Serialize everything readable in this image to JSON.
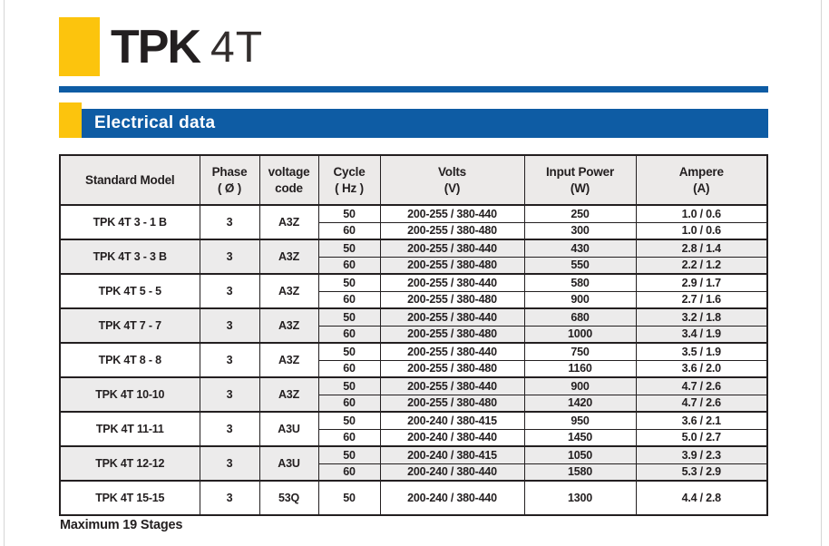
{
  "header": {
    "brand": "TPK",
    "series": "4T"
  },
  "section": {
    "title": "Electrical data"
  },
  "footnote": "Maximum 19 Stages",
  "colors": {
    "accent_blue": "#0e5ca4",
    "accent_yellow": "#fcc40d",
    "text_black": "#231f20",
    "row_alt_gray": "#ecebeb",
    "header_gray": "#eceae9",
    "page_edge_gray": "#d6d6d6"
  },
  "table": {
    "headers": [
      {
        "line1": "Standard Model"
      },
      {
        "line1": "Phase",
        "line2": "( Ø )"
      },
      {
        "line1": "voltage",
        "line2": "code"
      },
      {
        "line1": "Cycle",
        "line2": "( Hz )"
      },
      {
        "line1": "Volts",
        "line2": "(V)"
      },
      {
        "line1": "Input Power",
        "line2": "(W)"
      },
      {
        "line1": "Ampere",
        "line2": "(A)"
      }
    ],
    "groups": [
      {
        "model": "TPK 4T 3 - 1 B",
        "phase": "3",
        "voltage_code": "A3Z",
        "rows": [
          {
            "cycle": "50",
            "volts": "200-255 / 380-440",
            "input_power": "250",
            "ampere": "1.0 / 0.6"
          },
          {
            "cycle": "60",
            "volts": "200-255 / 380-480",
            "input_power": "300",
            "ampere": "1.0 / 0.6"
          }
        ]
      },
      {
        "model": "TPK 4T 3 - 3 B",
        "phase": "3",
        "voltage_code": "A3Z",
        "rows": [
          {
            "cycle": "50",
            "volts": "200-255 / 380-440",
            "input_power": "430",
            "ampere": "2.8 / 1.4"
          },
          {
            "cycle": "60",
            "volts": "200-255 / 380-480",
            "input_power": "550",
            "ampere": "2.2 / 1.2"
          }
        ]
      },
      {
        "model": "TPK 4T 5 - 5",
        "phase": "3",
        "voltage_code": "A3Z",
        "rows": [
          {
            "cycle": "50",
            "volts": "200-255 / 380-440",
            "input_power": "580",
            "ampere": "2.9 / 1.7"
          },
          {
            "cycle": "60",
            "volts": "200-255 / 380-480",
            "input_power": "900",
            "ampere": "2.7 / 1.6"
          }
        ]
      },
      {
        "model": "TPK 4T 7 - 7",
        "phase": "3",
        "voltage_code": "A3Z",
        "rows": [
          {
            "cycle": "50",
            "volts": "200-255 / 380-440",
            "input_power": "680",
            "ampere": "3.2 / 1.8"
          },
          {
            "cycle": "60",
            "volts": "200-255 / 380-480",
            "input_power": "1000",
            "ampere": "3.4 / 1.9"
          }
        ]
      },
      {
        "model": "TPK 4T 8 - 8",
        "phase": "3",
        "voltage_code": "A3Z",
        "rows": [
          {
            "cycle": "50",
            "volts": "200-255 / 380-440",
            "input_power": "750",
            "ampere": "3.5 / 1.9"
          },
          {
            "cycle": "60",
            "volts": "200-255 / 380-480",
            "input_power": "1160",
            "ampere": "3.6 / 2.0"
          }
        ]
      },
      {
        "model": "TPK 4T 10-10",
        "phase": "3",
        "voltage_code": "A3Z",
        "rows": [
          {
            "cycle": "50",
            "volts": "200-255 / 380-440",
            "input_power": "900",
            "ampere": "4.7 / 2.6"
          },
          {
            "cycle": "60",
            "volts": "200-255 / 380-480",
            "input_power": "1420",
            "ampere": "4.7 / 2.6"
          }
        ]
      },
      {
        "model": "TPK 4T 11-11",
        "phase": "3",
        "voltage_code": "A3U",
        "rows": [
          {
            "cycle": "50",
            "volts": "200-240 / 380-415",
            "input_power": "950",
            "ampere": "3.6 / 2.1"
          },
          {
            "cycle": "60",
            "volts": "200-240 / 380-440",
            "input_power": "1450",
            "ampere": "5.0 / 2.7"
          }
        ]
      },
      {
        "model": "TPK 4T 12-12",
        "phase": "3",
        "voltage_code": "A3U",
        "rows": [
          {
            "cycle": "50",
            "volts": "200-240 / 380-415",
            "input_power": "1050",
            "ampere": "3.9 / 2.3"
          },
          {
            "cycle": "60",
            "volts": "200-240 / 380-440",
            "input_power": "1580",
            "ampere": "5.3 / 2.9"
          }
        ]
      },
      {
        "model": "TPK 4T 15-15",
        "phase": "3",
        "voltage_code": "53Q",
        "rows": [
          {
            "cycle": "50",
            "volts": "200-240 / 380-440",
            "input_power": "1300",
            "ampere": "4.4 / 2.8"
          }
        ]
      }
    ]
  }
}
